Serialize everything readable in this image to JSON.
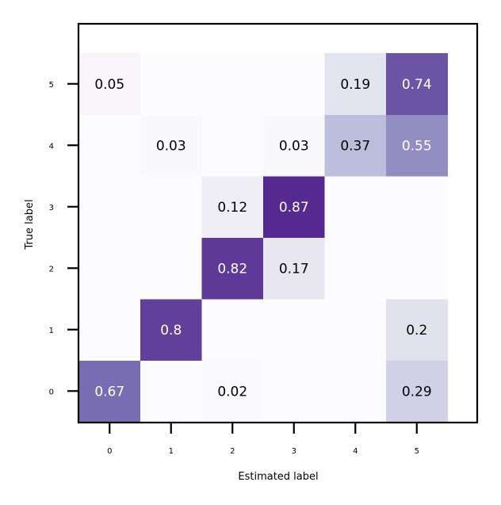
{
  "chart_data": {
    "type": "heatmap",
    "title": "",
    "xlabel": "Estimated label",
    "ylabel": "True label",
    "x_categories": [
      "0",
      "1",
      "2",
      "3",
      "4",
      "5"
    ],
    "y_categories": [
      "0",
      "1",
      "2",
      "3",
      "4",
      "5"
    ],
    "colormap": "Purples",
    "vmin": 0,
    "vmax": 1,
    "grid": false,
    "legend": "none",
    "cells": [
      {
        "x": 0,
        "y": 0,
        "value": 0.67,
        "label": "0.67"
      },
      {
        "x": 2,
        "y": 0,
        "value": 0.02,
        "label": "0.02"
      },
      {
        "x": 5,
        "y": 0,
        "value": 0.29,
        "label": "0.29"
      },
      {
        "x": 1,
        "y": 1,
        "value": 0.8,
        "label": "0.8"
      },
      {
        "x": 5,
        "y": 1,
        "value": 0.2,
        "label": "0.2"
      },
      {
        "x": 2,
        "y": 2,
        "value": 0.82,
        "label": "0.82"
      },
      {
        "x": 3,
        "y": 2,
        "value": 0.17,
        "label": "0.17"
      },
      {
        "x": 2,
        "y": 3,
        "value": 0.12,
        "label": "0.12"
      },
      {
        "x": 3,
        "y": 3,
        "value": 0.87,
        "label": "0.87"
      },
      {
        "x": 1,
        "y": 4,
        "value": 0.03,
        "label": "0.03"
      },
      {
        "x": 3,
        "y": 4,
        "value": 0.03,
        "label": "0.03"
      },
      {
        "x": 4,
        "y": 4,
        "value": 0.37,
        "label": "0.37"
      },
      {
        "x": 5,
        "y": 4,
        "value": 0.55,
        "label": "0.55"
      },
      {
        "x": 0,
        "y": 5,
        "value": 0.05,
        "label": "0.05"
      },
      {
        "x": 4,
        "y": 5,
        "value": 0.19,
        "label": "0.19"
      },
      {
        "x": 5,
        "y": 5,
        "value": 0.74,
        "label": "0.74"
      }
    ]
  }
}
